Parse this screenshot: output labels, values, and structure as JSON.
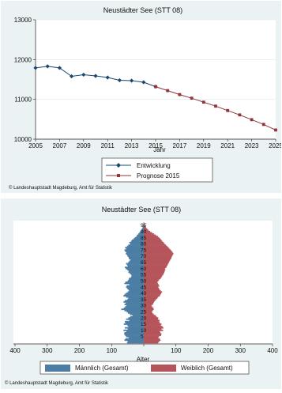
{
  "chart_data": [
    {
      "type": "line",
      "title": "Neustädter See (STT 08)",
      "xlabel": "Jahr",
      "ylabel": "",
      "xlim": [
        2005,
        2025
      ],
      "ylim": [
        10000,
        13000
      ],
      "x_ticks": [
        2005,
        2007,
        2009,
        2011,
        2013,
        2015,
        2017,
        2019,
        2021,
        2023,
        2025
      ],
      "y_ticks": [
        10000,
        11000,
        12000,
        13000
      ],
      "legend_position": "bottom",
      "series": [
        {
          "name": "Entwicklung",
          "color": "#1a476f",
          "marker": "diamond",
          "x": [
            2005,
            2006,
            2007,
            2008,
            2009,
            2010,
            2011,
            2012,
            2013,
            2014,
            2015
          ],
          "y": [
            11790,
            11830,
            11790,
            11580,
            11620,
            11590,
            11550,
            11480,
            11470,
            11430,
            11320
          ]
        },
        {
          "name": "Prognose 2015",
          "color": "#90353b",
          "marker": "square",
          "x": [
            2015,
            2016,
            2017,
            2018,
            2019,
            2020,
            2021,
            2022,
            2023,
            2024,
            2025
          ],
          "y": [
            11320,
            11220,
            11120,
            11030,
            10930,
            10830,
            10720,
            10610,
            10490,
            10370,
            10230
          ]
        }
      ],
      "source": "© Landeshauptstadt Magdeburg, Amt für Statistik"
    },
    {
      "type": "bar",
      "subtype": "population-pyramid",
      "title": "Neustädter See (STT 08)",
      "xlabel": "Alter",
      "xlim": [
        -400,
        400
      ],
      "x_tick_labels": [
        "400",
        "300",
        "200",
        "100",
        "0",
        "100",
        "200",
        "300",
        "400"
      ],
      "age_tick_labels": [
        "5",
        "10",
        "15",
        "20",
        "25",
        "30",
        "35",
        "40",
        "45",
        "50",
        "55",
        "60",
        "65",
        "70",
        "75",
        "80",
        "85",
        "90",
        "95"
      ],
      "legend_position": "bottom",
      "ages": [
        0,
        1,
        2,
        3,
        4,
        5,
        6,
        7,
        8,
        9,
        10,
        11,
        12,
        13,
        14,
        15,
        16,
        17,
        18,
        19,
        20,
        21,
        22,
        23,
        24,
        25,
        26,
        27,
        28,
        29,
        30,
        31,
        32,
        33,
        34,
        35,
        36,
        37,
        38,
        39,
        40,
        41,
        42,
        43,
        44,
        45,
        46,
        47,
        48,
        49,
        50,
        51,
        52,
        53,
        54,
        55,
        56,
        57,
        58,
        59,
        60,
        61,
        62,
        63,
        64,
        65,
        66,
        67,
        68,
        69,
        70,
        71,
        72,
        73,
        74,
        75,
        76,
        77,
        78,
        79,
        80,
        81,
        82,
        83,
        84,
        85,
        86,
        87,
        88,
        89,
        90,
        91,
        92,
        93,
        94,
        95,
        96,
        97
      ],
      "series": [
        {
          "name": "Männlich (Gesamt)",
          "color": "#4c7ea5",
          "values": [
            52,
            50,
            60,
            57,
            47,
            55,
            58,
            61,
            60,
            54,
            63,
            50,
            59,
            48,
            51,
            62,
            57,
            59,
            45,
            55,
            48,
            42,
            35,
            43,
            49,
            53,
            60,
            70,
            62,
            58,
            54,
            60,
            56,
            63,
            59,
            51,
            48,
            55,
            63,
            60,
            55,
            50,
            46,
            48,
            52,
            55,
            53,
            45,
            60,
            57,
            50,
            47,
            46,
            40,
            38,
            39,
            43,
            48,
            47,
            51,
            56,
            59,
            50,
            52,
            55,
            48,
            45,
            41,
            46,
            47,
            50,
            52,
            56,
            54,
            58,
            60,
            55,
            58,
            52,
            48,
            42,
            45,
            40,
            37,
            32,
            28,
            23,
            21,
            17,
            14,
            11,
            8,
            6,
            4,
            3,
            2,
            1,
            1
          ]
        },
        {
          "name": "Weiblich (Gesamt)",
          "color": "#b5555b",
          "values": [
            45,
            48,
            52,
            50,
            45,
            48,
            54,
            55,
            52,
            50,
            60,
            55,
            61,
            58,
            53,
            55,
            50,
            48,
            49,
            44,
            45,
            40,
            36,
            31,
            27,
            25,
            28,
            31,
            30,
            26,
            24,
            28,
            30,
            32,
            35,
            38,
            42,
            45,
            50,
            52,
            54,
            57,
            53,
            49,
            47,
            45,
            48,
            46,
            44,
            42,
            45,
            48,
            52,
            55,
            57,
            60,
            62,
            64,
            65,
            67,
            66,
            70,
            72,
            74,
            76,
            78,
            80,
            82,
            85,
            86,
            88,
            90,
            92,
            90,
            87,
            84,
            80,
            77,
            73,
            69,
            65,
            62,
            58,
            55,
            52,
            48,
            44,
            38,
            32,
            26,
            20,
            15,
            11,
            8,
            5,
            3,
            2,
            1
          ]
        }
      ],
      "source": "© Landeshauptstadt Magdeburg, Amt für Statistik"
    }
  ]
}
